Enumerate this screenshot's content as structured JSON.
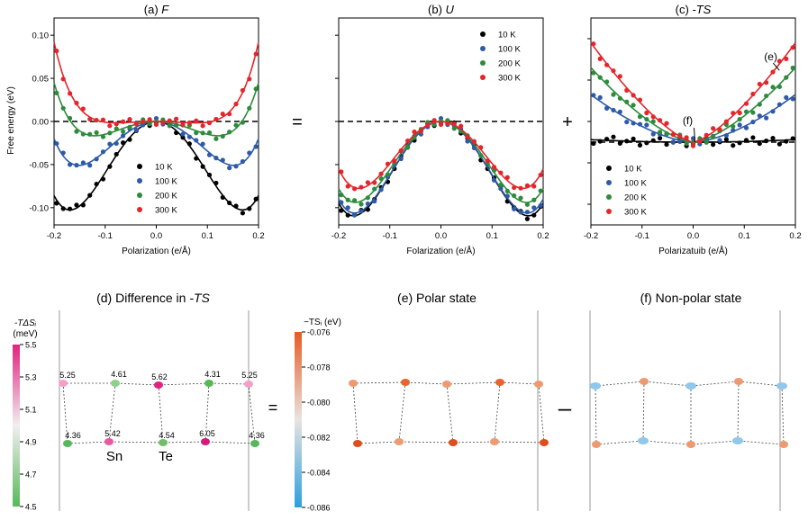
{
  "figure": {
    "ylabel": "Free energy (eV)",
    "eq_sign_1": "=",
    "plus_sign": "+",
    "eq_sign_2": "=",
    "minus_sign": "–"
  },
  "chart_data": [
    {
      "id": "a",
      "type": "scatter",
      "title_prefix": "(a) ",
      "title_var": "F",
      "xlabel": "Polarization (e/Å)",
      "ylabel": "Free energy (eV)",
      "xlim": [
        -0.2,
        0.2
      ],
      "ylim": [
        -0.12,
        0.12
      ],
      "xticks": [
        "-0.2",
        "-0.1",
        "0.0",
        "0.1",
        "0.2"
      ],
      "xtick_values": [
        -0.2,
        -0.1,
        0,
        0.1,
        0.2
      ],
      "yticks": [
        "-0.10",
        "-0.05",
        "0.00",
        "0.05",
        "0.10"
      ],
      "ytick_values": [
        -0.1,
        -0.05,
        0,
        0.05,
        0.1
      ],
      "reference_line": 0,
      "legend_position": "lower-center",
      "series": [
        {
          "name": "10 K",
          "color": "#000000",
          "params": {
            "p0": 0.168,
            "depth": 0.102,
            "edge": -0.086
          }
        },
        {
          "name": "100 K",
          "color": "#2e5aa8",
          "params": {
            "p0": 0.158,
            "depth": 0.054,
            "edge": -0.02
          }
        },
        {
          "name": "200 K",
          "color": "#2e8b3c",
          "params": {
            "p0": 0.128,
            "depth": 0.018,
            "edge": 0.045
          }
        },
        {
          "name": "300 K",
          "color": "#e4262c",
          "params": {
            "p0": 0.09,
            "depth": 0.002,
            "edge": 0.092
          }
        }
      ]
    },
    {
      "id": "b",
      "type": "scatter",
      "title_prefix": "(b) ",
      "title_var": "U",
      "xlabel": "Folarization (e/Å)",
      "xlim": [
        -0.2,
        0.2
      ],
      "ylim": [
        -0.12,
        0.12
      ],
      "xticks": [
        "-0.2",
        "-0.1",
        "0.0",
        "0.1",
        "0.2"
      ],
      "xtick_values": [
        -0.2,
        -0.1,
        0,
        0.1,
        0.2
      ],
      "ytick_values": [
        -0.1,
        -0.05,
        0,
        0.05,
        0.1
      ],
      "reference_line": 0,
      "legend_position": "top-right",
      "series": [
        {
          "name": "10 K",
          "color": "#000000",
          "params": {
            "p0": 0.168,
            "depth": 0.107,
            "edge": -0.095
          }
        },
        {
          "name": "100 K",
          "color": "#2e5aa8",
          "params": {
            "p0": 0.165,
            "depth": 0.103,
            "edge": -0.09
          }
        },
        {
          "name": "200 K",
          "color": "#2e8b3c",
          "params": {
            "p0": 0.162,
            "depth": 0.09,
            "edge": -0.078
          }
        },
        {
          "name": "300 K",
          "color": "#e4262c",
          "params": {
            "p0": 0.158,
            "depth": 0.076,
            "edge": -0.055
          }
        }
      ]
    },
    {
      "id": "c",
      "type": "scatter",
      "title_prefix": "(c) ",
      "title_var": "-TS",
      "xlabel": "Polarizatuib (e/Å)",
      "xlim": [
        -0.2,
        0.2
      ],
      "ylim": [
        -0.04,
        0.06
      ],
      "xticks": [
        "-0.2",
        "-0.1",
        "0.0",
        "0.1",
        "0.2"
      ],
      "xtick_values": [
        -0.2,
        -0.1,
        0,
        0.1,
        0.2
      ],
      "ytick_values": [
        -0.03,
        -0.01,
        0.01,
        0.03,
        0.05
      ],
      "reference_line": 0,
      "legend_position": "lower-left",
      "annotations": [
        {
          "label": "(e)",
          "x": 0.16,
          "y": 0.036
        },
        {
          "label": "(f)",
          "x": 0.0,
          "y": 0.0
        }
      ],
      "series": [
        {
          "name": "10 K",
          "color": "#000000",
          "params": {
            "a": 0.0012,
            "pow": 2
          }
        },
        {
          "name": "100 K",
          "color": "#2e5aa8",
          "params": {
            "a": 0.023,
            "pow": 1.6
          }
        },
        {
          "name": "200 K",
          "color": "#2e8b3c",
          "params": {
            "a": 0.036,
            "pow": 1.5
          }
        },
        {
          "name": "300 K",
          "color": "#e4262c",
          "params": {
            "a": 0.048,
            "pow": 1.4
          }
        }
      ]
    }
  ],
  "panel_d": {
    "title_prefix": "(d) Difference in ",
    "title_var": "-TS",
    "colorbar_label_1": "-TΔSᵢ",
    "colorbar_label_2": "(meV)",
    "colorbar_ticks": [
      "5.5",
      "5.3",
      "5.1",
      "4.9",
      "4.7",
      "4.5"
    ],
    "atoms_top": [
      "5.25",
      "4.61",
      "5.62",
      "4.31",
      "5.25"
    ],
    "atoms_bottom": [
      "4.36",
      "5.42",
      "4.54",
      "6.05",
      "4.36"
    ],
    "label_sn": "Sn",
    "label_te": "Te"
  },
  "panel_e": {
    "title": "(e) Polar state",
    "colorbar_label": "−TSᵢ (eV)",
    "colorbar_ticks": [
      "-0.076",
      "-0.078",
      "-0.080",
      "-0.082",
      "-0.084",
      "-0.086"
    ]
  },
  "panel_f": {
    "title": "(f) Non-polar state"
  }
}
